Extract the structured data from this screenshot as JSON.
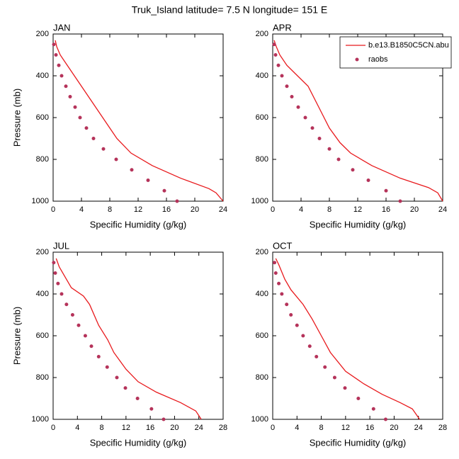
{
  "title": "Truk_Island  latitude= 7.5 N longitude= 151 E",
  "chart_data": [
    {
      "type": "line",
      "title": "JAN",
      "xlabel": "Specific Humidity (g/kg)",
      "ylabel": "Pressure (mb)",
      "xlim": [
        0,
        24
      ],
      "xticks": [
        0,
        4,
        8,
        12,
        16,
        20,
        24
      ],
      "ylim": [
        1000,
        200
      ],
      "yticks": [
        200,
        400,
        600,
        800,
        1000
      ],
      "grid": false,
      "series": [
        {
          "type": "line",
          "color": "#e8191c",
          "x": [
            0.3,
            0.5,
            1,
            2,
            3,
            4,
            6,
            8,
            9,
            11,
            14,
            18,
            22,
            23,
            24
          ],
          "y": [
            230,
            260,
            300,
            350,
            400,
            450,
            550,
            650,
            700,
            770,
            830,
            890,
            940,
            960,
            1000
          ]
        },
        {
          "type": "scatter",
          "color": "#b5335a",
          "x": [
            0.1,
            0.4,
            0.8,
            1.2,
            1.8,
            2.4,
            3.1,
            3.8,
            4.7,
            5.7,
            7.1,
            8.9,
            11.1,
            13.4,
            15.7,
            17.5
          ],
          "y": [
            250,
            300,
            350,
            400,
            450,
            500,
            550,
            600,
            650,
            700,
            750,
            800,
            850,
            900,
            950,
            1000
          ]
        }
      ]
    },
    {
      "type": "line",
      "title": "APR",
      "xlabel": "Specific Humidity (g/kg)",
      "xlim": [
        0,
        24
      ],
      "xticks": [
        0,
        4,
        8,
        12,
        16,
        20,
        24
      ],
      "ylim": [
        1000,
        200
      ],
      "yticks": [
        200,
        400,
        600,
        800,
        1000
      ],
      "grid": false,
      "legend": "upper right",
      "series": [
        {
          "type": "line",
          "name": "b.e13.B1850C5CN.abu",
          "color": "#e8191c",
          "x": [
            0.2,
            0.5,
            1,
            2,
            3.5,
            5,
            6.5,
            8,
            9.5,
            11,
            14,
            18,
            22,
            23.3,
            24
          ],
          "y": [
            230,
            260,
            300,
            350,
            400,
            450,
            550,
            650,
            720,
            770,
            830,
            890,
            935,
            960,
            1000
          ]
        },
        {
          "type": "scatter",
          "name": "raobs",
          "color": "#b5335a",
          "x": [
            0.2,
            0.4,
            0.8,
            1.3,
            2,
            2.7,
            3.6,
            4.6,
            5.6,
            6.6,
            8,
            9.3,
            11.3,
            13.5,
            16,
            18
          ],
          "y": [
            250,
            300,
            350,
            400,
            450,
            500,
            550,
            600,
            650,
            700,
            750,
            800,
            850,
            900,
            950,
            1000
          ]
        }
      ]
    },
    {
      "type": "line",
      "title": "JUL",
      "xlabel": "Specific Humidity (g/kg)",
      "ylabel": "Pressure (mb)",
      "xlim": [
        0,
        28
      ],
      "xticks": [
        0,
        4,
        8,
        12,
        16,
        20,
        24,
        28
      ],
      "ylim": [
        1000,
        200
      ],
      "yticks": [
        200,
        400,
        600,
        800,
        1000
      ],
      "grid": false,
      "series": [
        {
          "type": "line",
          "color": "#e8191c",
          "x": [
            0.5,
            1,
            2,
            3,
            5,
            6,
            7.5,
            9,
            10,
            12,
            14,
            17,
            21,
            23.5,
            24.4
          ],
          "y": [
            230,
            270,
            320,
            370,
            410,
            450,
            550,
            620,
            680,
            760,
            820,
            870,
            920,
            960,
            1000
          ]
        },
        {
          "type": "scatter",
          "color": "#b5335a",
          "x": [
            0.1,
            0.35,
            0.8,
            1.4,
            2.2,
            3.2,
            4.2,
            5.3,
            6.3,
            7.5,
            8.9,
            10.5,
            11.9,
            13.9,
            16.2,
            18.2
          ],
          "y": [
            250,
            300,
            350,
            400,
            450,
            500,
            550,
            600,
            650,
            700,
            750,
            800,
            850,
            900,
            950,
            1000
          ]
        }
      ]
    },
    {
      "type": "line",
      "title": "OCT",
      "xlabel": "Specific Humidity (g/kg)",
      "xlim": [
        0,
        28
      ],
      "xticks": [
        0,
        4,
        8,
        12,
        16,
        20,
        24,
        28
      ],
      "ylim": [
        1000,
        200
      ],
      "yticks": [
        200,
        400,
        600,
        800,
        1000
      ],
      "grid": false,
      "series": [
        {
          "type": "line",
          "color": "#e8191c",
          "x": [
            0.5,
            1,
            2,
            3,
            5,
            6.5,
            8,
            9.5,
            12,
            15,
            18,
            21,
            23,
            24.2
          ],
          "y": [
            230,
            260,
            330,
            380,
            450,
            520,
            600,
            680,
            770,
            830,
            880,
            920,
            950,
            1000
          ]
        },
        {
          "type": "scatter",
          "color": "#b5335a",
          "x": [
            0.3,
            0.5,
            1,
            1.5,
            2.3,
            3,
            4,
            5,
            6.1,
            7.2,
            8.6,
            10.2,
            11.9,
            14.1,
            16.6,
            18.6
          ],
          "y": [
            250,
            300,
            350,
            400,
            450,
            500,
            550,
            600,
            650,
            700,
            750,
            800,
            850,
            900,
            950,
            1000
          ]
        }
      ]
    }
  ]
}
